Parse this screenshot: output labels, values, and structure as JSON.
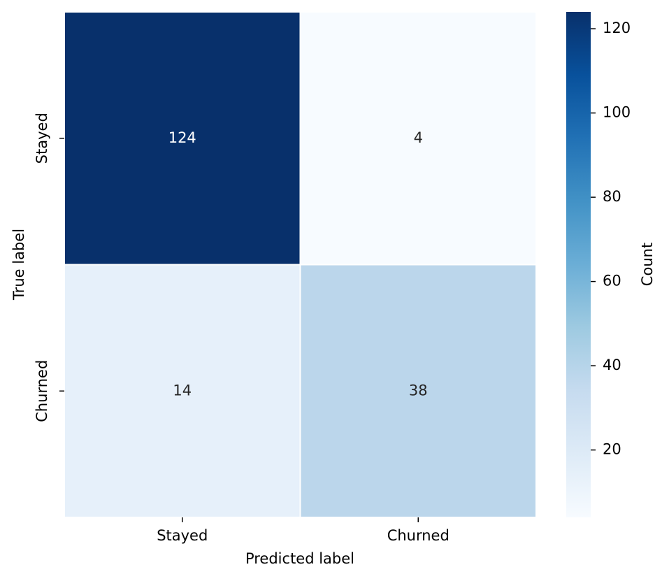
{
  "chart_data": {
    "type": "heatmap",
    "x_categories": [
      "Stayed",
      "Churned"
    ],
    "y_categories": [
      "Stayed",
      "Churned"
    ],
    "values": [
      [
        124,
        4
      ],
      [
        14,
        38
      ]
    ],
    "xlabel": "Predicted label",
    "ylabel": "True label",
    "colorbar_label": "Count",
    "clim": [
      4,
      124
    ],
    "colorbar_ticks": [
      20,
      40,
      60,
      80,
      100,
      120
    ],
    "colormap": [
      "#f7fbff",
      "#deebf7",
      "#c6dbef",
      "#9ecae1",
      "#6baed6",
      "#4292c6",
      "#2171b5",
      "#08519c",
      "#08306b"
    ]
  }
}
